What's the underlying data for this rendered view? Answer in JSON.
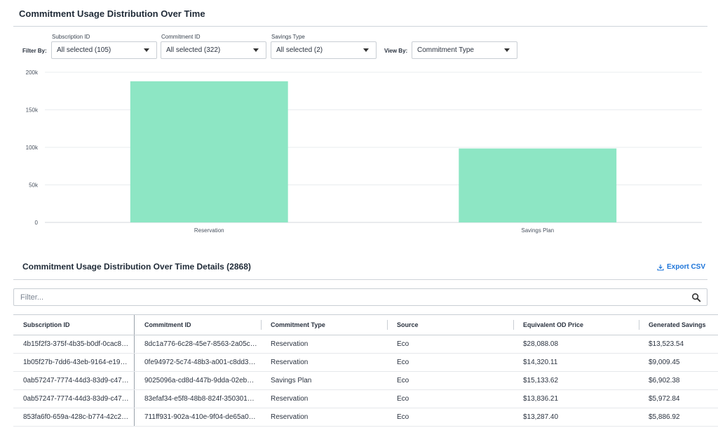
{
  "page": {
    "title": "Commitment Usage Distribution Over Time"
  },
  "filters": {
    "filter_by_label": "Filter By:",
    "view_by_label": "View By:",
    "subscription": {
      "label": "Subscription ID",
      "value": "All selected (105)"
    },
    "commitment": {
      "label": "Commitment ID",
      "value": "All selected (322)"
    },
    "savings_type": {
      "label": "Savings Type",
      "value": "All selected (2)"
    },
    "view_by": {
      "value": "Commitment Type"
    }
  },
  "chart_data": {
    "type": "bar",
    "categories": [
      "Reservation",
      "Savings Plan"
    ],
    "values": [
      188000,
      98500
    ],
    "ylim": [
      0,
      200000
    ],
    "yticks": [
      {
        "value": 0,
        "label": "0"
      },
      {
        "value": 50000,
        "label": "50k"
      },
      {
        "value": 100000,
        "label": "100k"
      },
      {
        "value": 150000,
        "label": "150k"
      },
      {
        "value": 200000,
        "label": "200k"
      }
    ],
    "bar_color": "#8de6c4",
    "grid": true,
    "xlabel": "",
    "ylabel": ""
  },
  "details": {
    "title": "Commitment Usage Distribution Over Time Details (2868)",
    "export_label": "Export CSV",
    "filter_placeholder": "Filter...",
    "columns": [
      "Subscription ID",
      "Commitment ID",
      "Commitment Type",
      "Source",
      "Equivalent OD Price",
      "Generated Savings"
    ],
    "rows": [
      [
        "4b15f2f3-375f-4b35-b0df-0cac8…",
        "8dc1a776-6c28-45e7-8563-2a05c…",
        "Reservation",
        "Eco",
        "$28,088.08",
        "$13,523.54"
      ],
      [
        "1b05f27b-7dd6-43eb-9164-e19…",
        "0fe94972-5c74-48b3-a001-c8dd3…",
        "Reservation",
        "Eco",
        "$14,320.11",
        "$9,009.45"
      ],
      [
        "0ab57247-7774-44d3-83d9-c47…",
        "9025096a-cd8d-447b-9dda-02eb…",
        "Savings Plan",
        "Eco",
        "$15,133.62",
        "$6,902.38"
      ],
      [
        "0ab57247-7774-44d3-83d9-c47…",
        "83efaf34-e5f8-48b8-824f-350301…",
        "Reservation",
        "Eco",
        "$13,836.21",
        "$5,972.84"
      ],
      [
        "853fa6f0-659a-428c-b774-42c2…",
        "711ff931-902a-410e-9f04-de65a0…",
        "Reservation",
        "Eco",
        "$13,287.40",
        "$5,886.92"
      ]
    ]
  },
  "colors": {
    "accent": "#1a73d9",
    "bar": "#8de6c4"
  }
}
